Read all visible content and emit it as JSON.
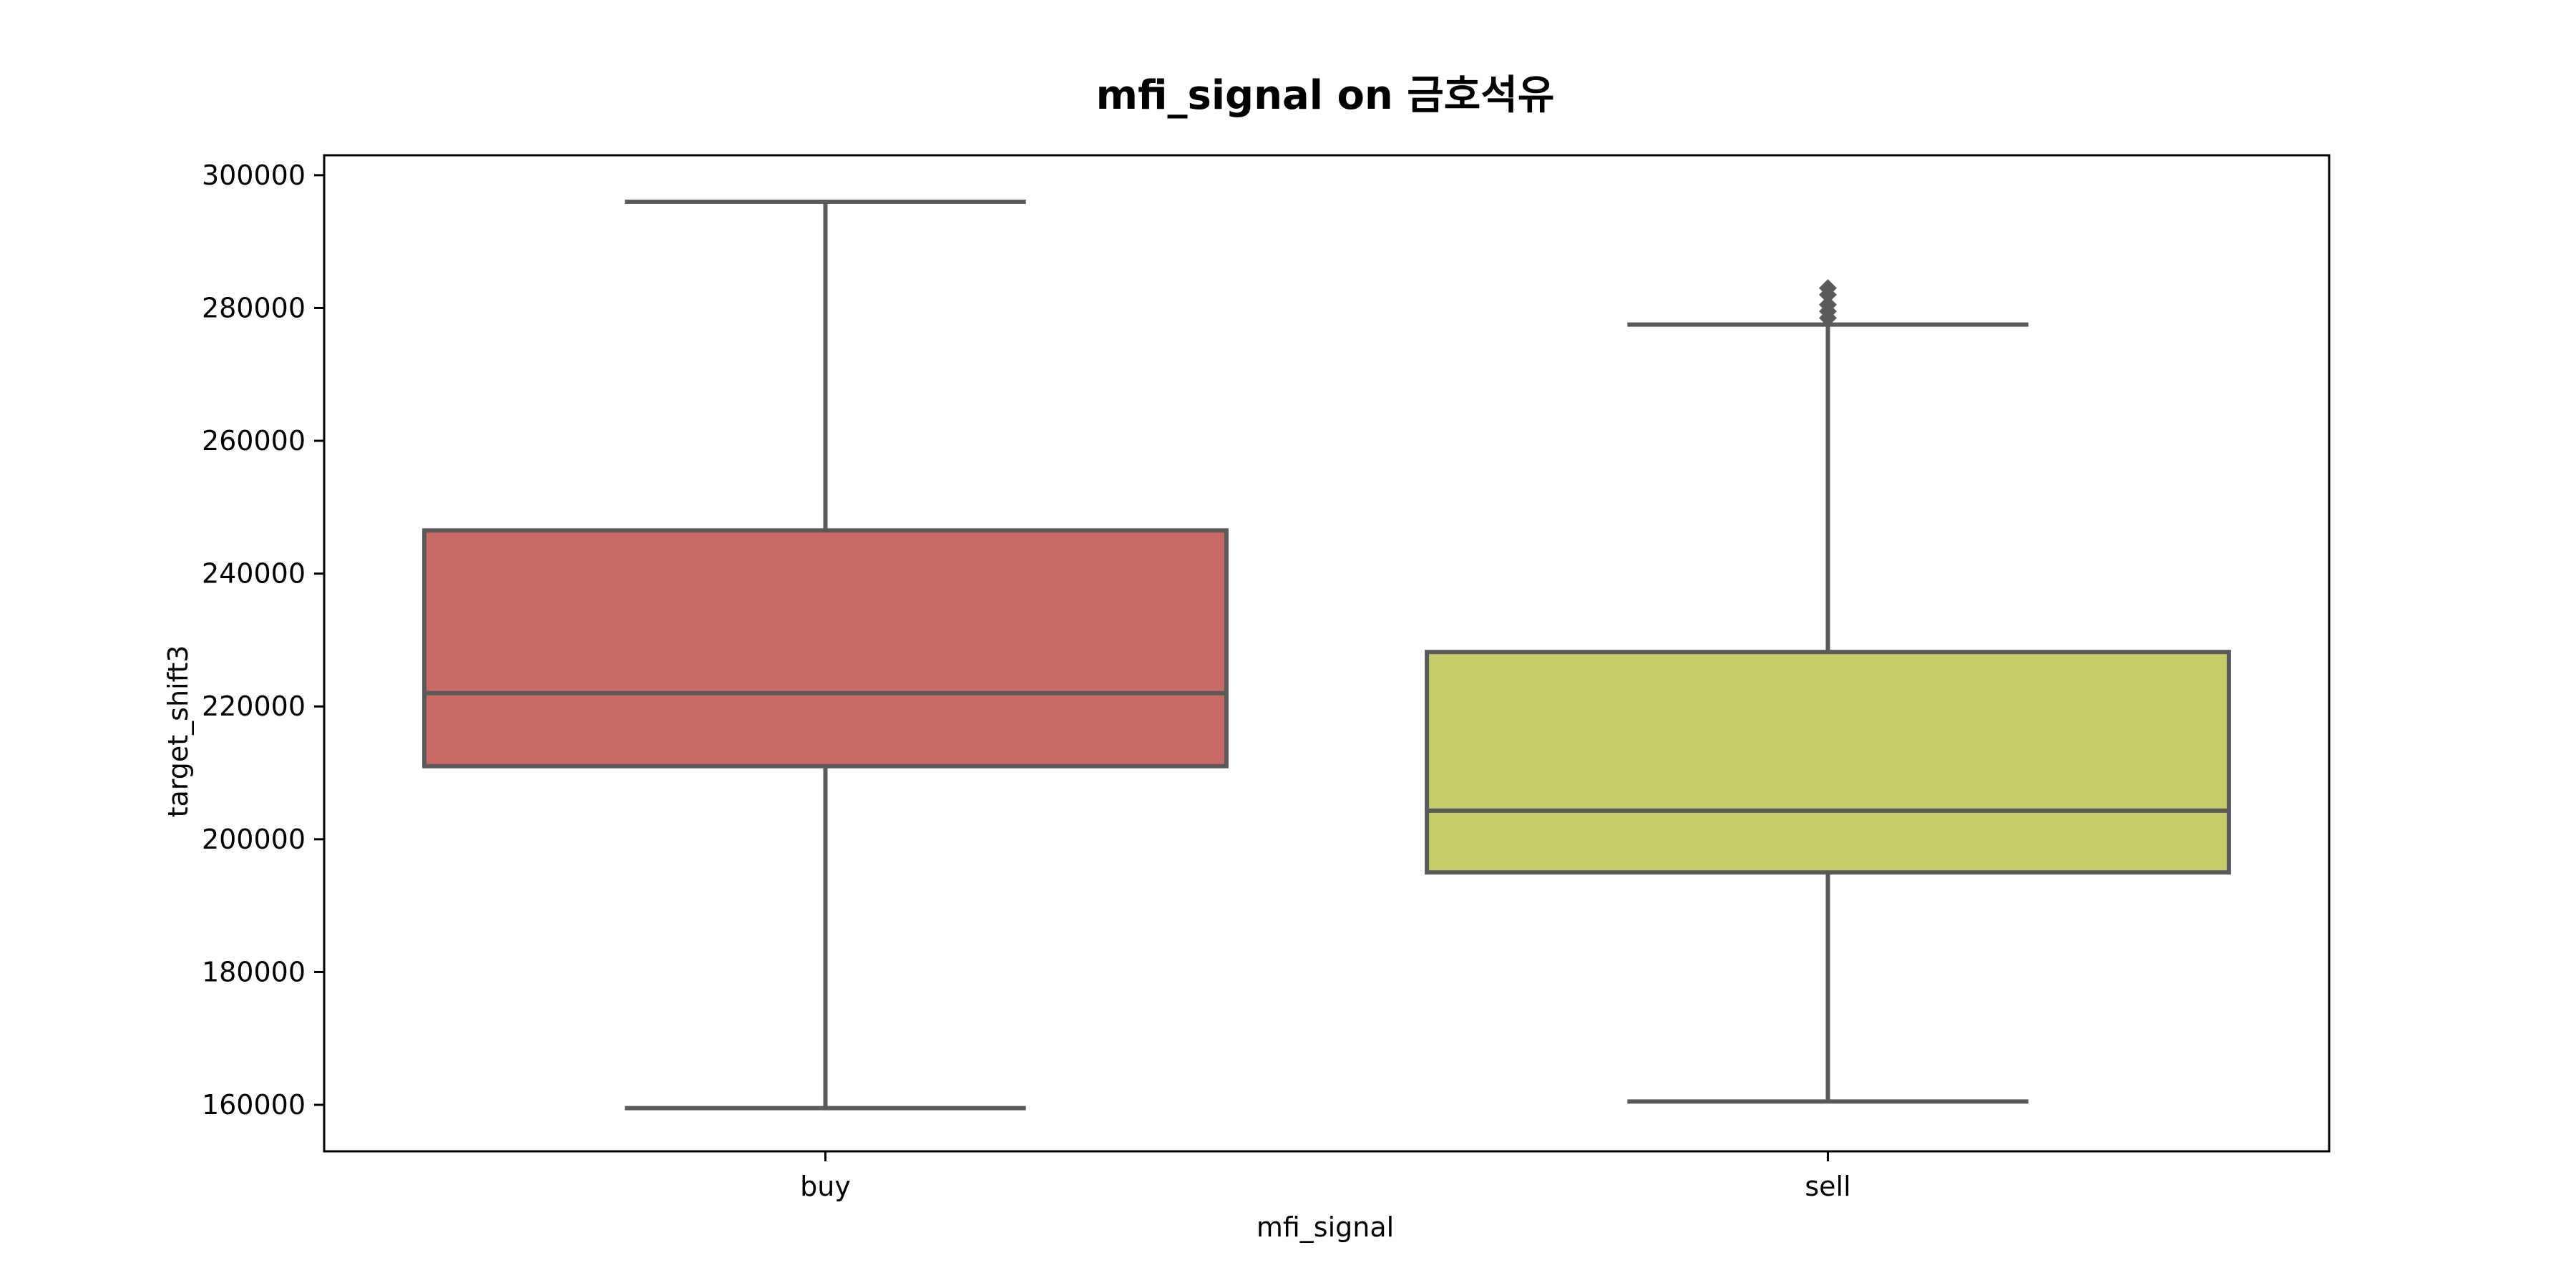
{
  "chart_data": {
    "type": "box",
    "title": "mfi_signal on 금호석유",
    "xlabel": "mfi_signal",
    "ylabel": "target_shift3",
    "categories": [
      "buy",
      "sell"
    ],
    "ylim": [
      153000,
      303000
    ],
    "yticks": [
      160000,
      180000,
      200000,
      220000,
      240000,
      260000,
      280000,
      300000
    ],
    "yticklabels": [
      "160000",
      "180000",
      "200000",
      "220000",
      "240000",
      "260000",
      "280000",
      "300000"
    ],
    "grid": false,
    "legend": "none",
    "boxes": [
      {
        "category": "buy",
        "whisker_low": 159500,
        "q1": 211000,
        "median": 222000,
        "q3": 246500,
        "whisker_high": 296000,
        "outliers": [],
        "color": "#C96B64"
      },
      {
        "category": "sell",
        "whisker_low": 160500,
        "q1": 195000,
        "median": 204300,
        "q3": 228200,
        "whisker_high": 277500,
        "outliers": [
          278500,
          279500,
          280500,
          282000,
          283000
        ],
        "color": "#C5CB67"
      }
    ],
    "line_color": "#5a5a5a"
  }
}
